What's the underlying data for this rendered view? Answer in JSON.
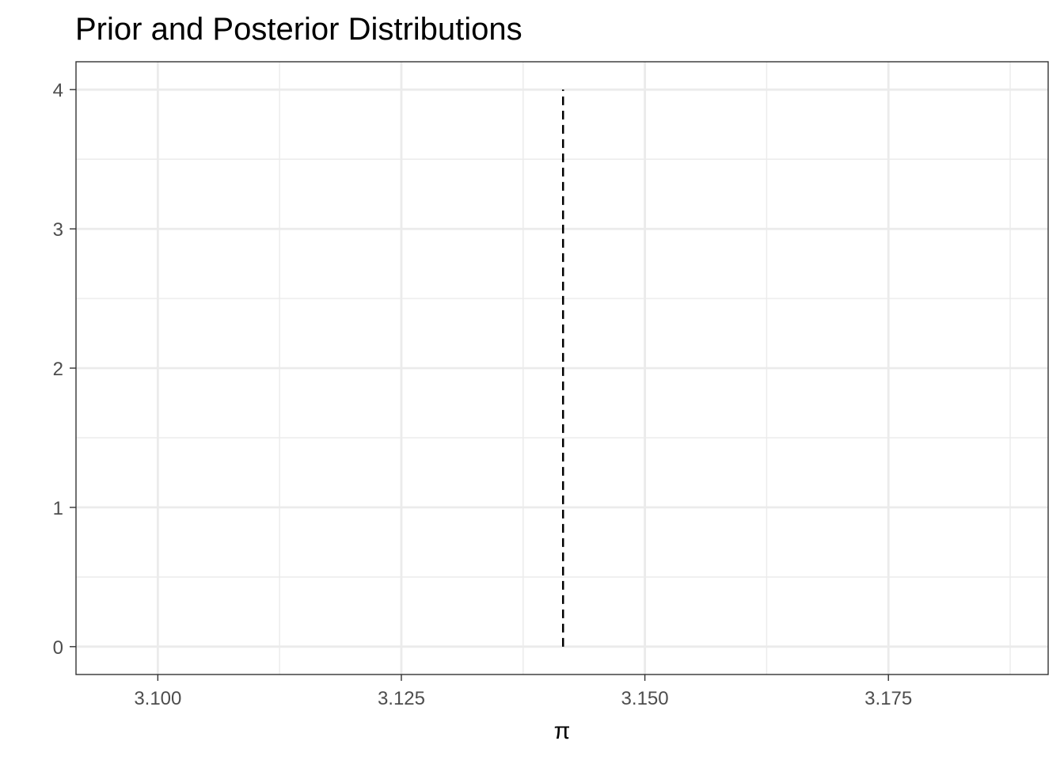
{
  "chart_data": {
    "type": "line",
    "title": "Prior and Posterior Distributions",
    "xlabel": "π",
    "ylabel": "",
    "xlim": [
      3.0916,
      3.1914
    ],
    "ylim": [
      -0.2,
      4.2
    ],
    "x_ticks": [
      3.1,
      3.125,
      3.15,
      3.175
    ],
    "x_tick_labels": [
      "3.100",
      "3.125",
      "3.150",
      "3.175"
    ],
    "y_ticks": [
      0,
      1,
      2,
      3,
      4
    ],
    "y_tick_labels": [
      "0",
      "1",
      "2",
      "3",
      "4"
    ],
    "x_minor_ticks": [
      3.0875,
      3.1125,
      3.1375,
      3.1625,
      3.1875
    ],
    "y_minor_ticks": [
      0.5,
      1.5,
      2.5,
      3.5
    ],
    "grid": true,
    "legend": "none",
    "annotations": [
      {
        "type": "vline",
        "x": 3.1416,
        "y_from": 0,
        "y_to": 4,
        "style": "dashed",
        "color": "#000000"
      }
    ],
    "colors": {
      "panel_border": "#333333",
      "grid_major": "#ebebeb",
      "grid_minor": "#ebebeb",
      "tick_mark": "#333333"
    }
  }
}
